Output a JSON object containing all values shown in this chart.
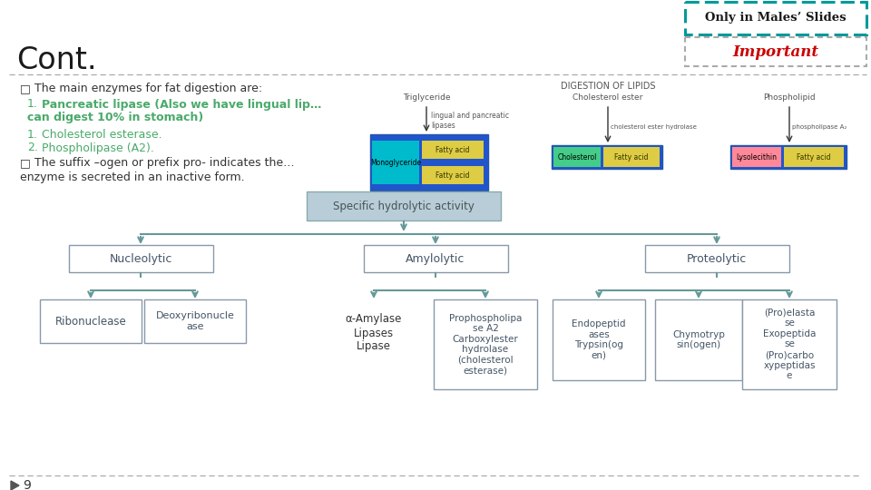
{
  "title": "Cont.",
  "bg_color": "#ffffff",
  "header_teal_text": "Only in Males’ Slides",
  "header_red_text": "Important",
  "specific_label": "Specific hydrolytic activity",
  "nucleolytic": "Nucleolytic",
  "amylolytic": "Amylolytic",
  "proteolytic": "Proteolytic",
  "ribonuclease": "Ribonuclease",
  "deoxy": "Deoxyribonucle\nase",
  "amylase_group": "α-Amylase\nLipases\nLipase",
  "prophospho": "Prophospholipa\nse A2\nCarboxylester\nhydrolase\n(cholesterol\nesterase)",
  "endopeptid": "Endopeptid\nases\nTrypsin(og\nen)",
  "chymotryp": "Chymotryp\nsin(ogen)",
  "proelasta": "(Pro)elasta\nse\nExopeptida\nse\n(Pro)carbo\nxypeptidas\ne",
  "page_num": "9",
  "teal_color": "#009999",
  "green_text": "#4aaa6a",
  "gray_box_color": "#b8cdd8",
  "box_edge_color": "#8899aa",
  "arrow_color": "#669999",
  "text_dark": "#333333",
  "sep_color": "#aaaaaa"
}
